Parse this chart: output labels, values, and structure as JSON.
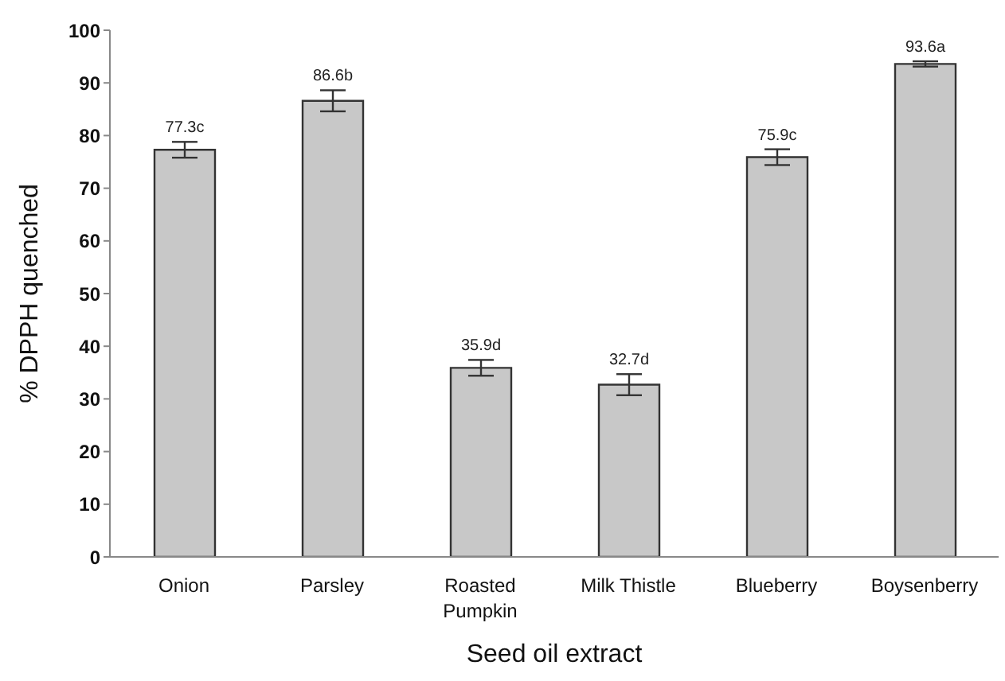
{
  "chart_data": {
    "type": "bar",
    "xlabel": "Seed oil extract",
    "ylabel": "% DPPH quenched",
    "categories": [
      "Onion",
      "Parsley",
      "Roasted Pumpkin",
      "Milk Thistle",
      "Blueberry",
      "Boysenberry"
    ],
    "values": [
      77.3,
      86.6,
      35.9,
      32.7,
      75.9,
      93.6
    ],
    "value_labels": [
      "77.3c",
      "86.6b",
      "35.9d",
      "32.7d",
      "75.9c",
      "93.6a"
    ],
    "errors": [
      1.5,
      2,
      1.5,
      2,
      1.5,
      0.5
    ],
    "color": "#c8c8c8",
    "ylim": [
      0,
      100
    ],
    "yticks": [
      0,
      10,
      20,
      30,
      40,
      50,
      60,
      70,
      80,
      90,
      100
    ],
    "grid": false
  }
}
